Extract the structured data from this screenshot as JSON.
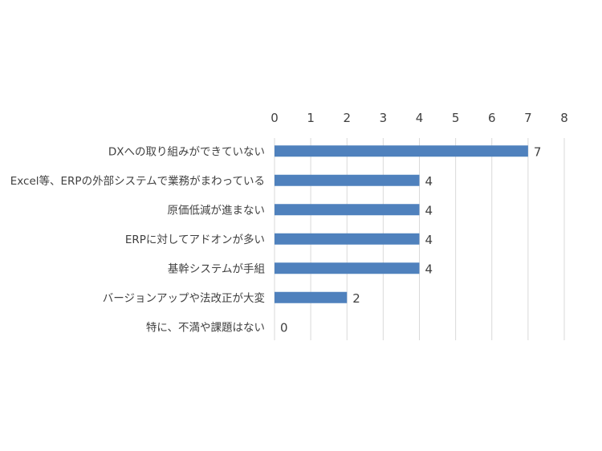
{
  "chart_data": {
    "type": "bar",
    "orientation": "horizontal",
    "categories": [
      "DXへの取り組みができていない",
      "Excel等、ERPの外部システムで業務がまわっている",
      "原価低減が進まない",
      "ERPに対してアドオンが多い",
      "基幹システムが手組",
      "バージョンアップや法改正が大変",
      "特に、不満や課題はない"
    ],
    "values": [
      7,
      4,
      4,
      4,
      4,
      2,
      0
    ],
    "xlim": [
      0,
      8
    ],
    "x_ticks": [
      0,
      1,
      2,
      3,
      4,
      5,
      6,
      7,
      8
    ],
    "x_axis_position": "top",
    "grid": true,
    "legend": "none",
    "colors": {
      "bar": "#4f81bd",
      "grid": "#d9d9d9",
      "text": "#404040"
    }
  }
}
